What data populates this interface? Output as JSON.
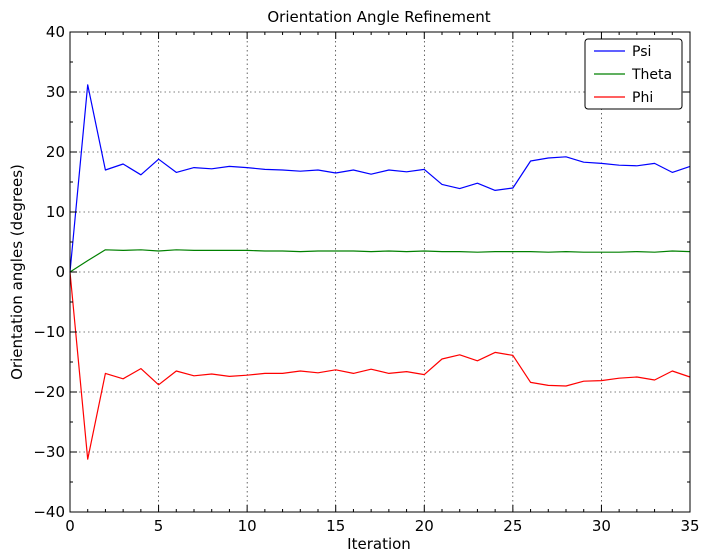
{
  "chart_data": {
    "type": "line",
    "title": "Orientation Angle Refinement",
    "xlabel": "Iteration",
    "ylabel": "Orientation angles (degrees)",
    "xlim": [
      0,
      35
    ],
    "ylim": [
      -40,
      40
    ],
    "xticks": [
      0,
      5,
      10,
      15,
      20,
      25,
      30,
      35
    ],
    "yticks": [
      -40,
      -30,
      -20,
      -10,
      0,
      10,
      20,
      30,
      40
    ],
    "xtick_labels": [
      "0",
      "5",
      "10",
      "15",
      "20",
      "25",
      "30",
      "35"
    ],
    "ytick_labels": [
      "−40",
      "−30",
      "−20",
      "−10",
      "0",
      "10",
      "20",
      "30",
      "40"
    ],
    "grid": true,
    "legend_position": "top-right",
    "x": [
      0,
      1,
      2,
      3,
      4,
      5,
      6,
      7,
      8,
      9,
      10,
      11,
      12,
      13,
      14,
      15,
      16,
      17,
      18,
      19,
      20,
      21,
      22,
      23,
      24,
      25,
      26,
      27,
      28,
      29,
      30,
      31,
      32,
      33,
      34,
      35
    ],
    "series": [
      {
        "name": "Psi",
        "color": "#0000ff",
        "values": [
          0,
          31.2,
          17.0,
          18.0,
          16.2,
          18.8,
          16.6,
          17.4,
          17.2,
          17.6,
          17.4,
          17.1,
          17.0,
          16.8,
          17.0,
          16.5,
          17.0,
          16.3,
          17.0,
          16.7,
          17.1,
          14.6,
          13.9,
          14.8,
          13.6,
          14.0,
          18.5,
          19.0,
          19.2,
          18.3,
          18.1,
          17.8,
          17.7,
          18.1,
          16.6,
          17.6
        ]
      },
      {
        "name": "Theta",
        "color": "#008000",
        "values": [
          0,
          1.9,
          3.7,
          3.6,
          3.7,
          3.5,
          3.7,
          3.6,
          3.6,
          3.6,
          3.6,
          3.5,
          3.5,
          3.4,
          3.5,
          3.5,
          3.5,
          3.4,
          3.5,
          3.4,
          3.5,
          3.4,
          3.4,
          3.3,
          3.4,
          3.4,
          3.4,
          3.3,
          3.4,
          3.3,
          3.3,
          3.3,
          3.4,
          3.3,
          3.5,
          3.4
        ]
      },
      {
        "name": "Phi",
        "color": "#ff0000",
        "values": [
          0,
          -31.2,
          -16.9,
          -17.8,
          -16.1,
          -18.8,
          -16.5,
          -17.3,
          -17.0,
          -17.4,
          -17.2,
          -16.9,
          -16.9,
          -16.5,
          -16.8,
          -16.3,
          -16.9,
          -16.2,
          -16.9,
          -16.6,
          -17.1,
          -14.5,
          -13.8,
          -14.8,
          -13.4,
          -13.9,
          -18.4,
          -18.9,
          -19.0,
          -18.2,
          -18.1,
          -17.7,
          -17.5,
          -18.0,
          -16.5,
          -17.5
        ]
      }
    ]
  }
}
